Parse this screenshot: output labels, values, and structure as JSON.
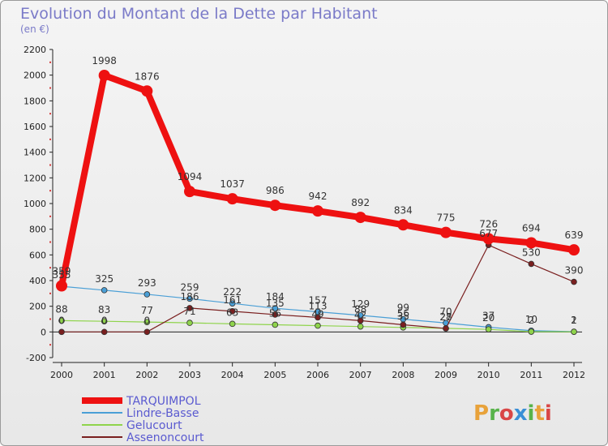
{
  "chart_data": {
    "type": "line",
    "title": "Evolution du Montant de la Dette par Habitant",
    "subtitle": "(en €)",
    "x": [
      "2000",
      "2001",
      "2002",
      "2003",
      "2004",
      "2005",
      "2006",
      "2007",
      "2008",
      "2009",
      "2010",
      "2011",
      "2012"
    ],
    "ylim": [
      -200,
      2200
    ],
    "yticks": [
      -200,
      0,
      200,
      400,
      600,
      800,
      1000,
      1200,
      1400,
      1600,
      1800,
      2000,
      2200
    ],
    "grid": false,
    "legend_position": "bottom-left",
    "series": [
      {
        "name": "TARQUIMPOL",
        "color": "#ee1111",
        "emphasis": true,
        "values": [
          359,
          1998,
          1876,
          1094,
          1037,
          986,
          942,
          892,
          834,
          775,
          726,
          694,
          639
        ],
        "labels": [
          "359",
          "1998",
          "1876",
          "1094",
          "1037",
          "986",
          "942",
          "892",
          "834",
          "775",
          "726",
          "694",
          "639"
        ]
      },
      {
        "name": "Lindre-Basse",
        "color": "#4a9fd6",
        "values": [
          355,
          325,
          293,
          259,
          222,
          184,
          157,
          129,
          99,
          70,
          37,
          10,
          2
        ],
        "labels": [
          "355",
          "325",
          "293",
          "259",
          "222",
          "184",
          "157",
          "129",
          "99",
          "70",
          "37",
          "10",
          "2"
        ]
      },
      {
        "name": "Gelucourt",
        "color": "#8fd44c",
        "values": [
          88,
          83,
          77,
          71,
          63,
          56,
          49,
          42,
          35,
          28,
          20,
          2,
          1
        ],
        "labels": [
          "88",
          "83",
          "77",
          "71",
          "63",
          "56",
          "49",
          "42",
          "35",
          "28",
          "20",
          "2",
          "1"
        ]
      },
      {
        "name": "Assenoncourt",
        "color": "#7a1f1f",
        "values": [
          0,
          0,
          0,
          186,
          161,
          135,
          113,
          88,
          56,
          27,
          677,
          530,
          390
        ],
        "labels": [
          "0",
          "0",
          "0",
          "186",
          "161",
          "135",
          "113",
          "88",
          "56",
          "27",
          "677",
          "530",
          "390"
        ]
      }
    ],
    "watermark": "Proxiti",
    "watermark_colors": [
      "#e8a23a",
      "#58b34a",
      "#d94646",
      "#3a8fd6",
      "#58b34a",
      "#e8a23a",
      "#d94646"
    ]
  }
}
